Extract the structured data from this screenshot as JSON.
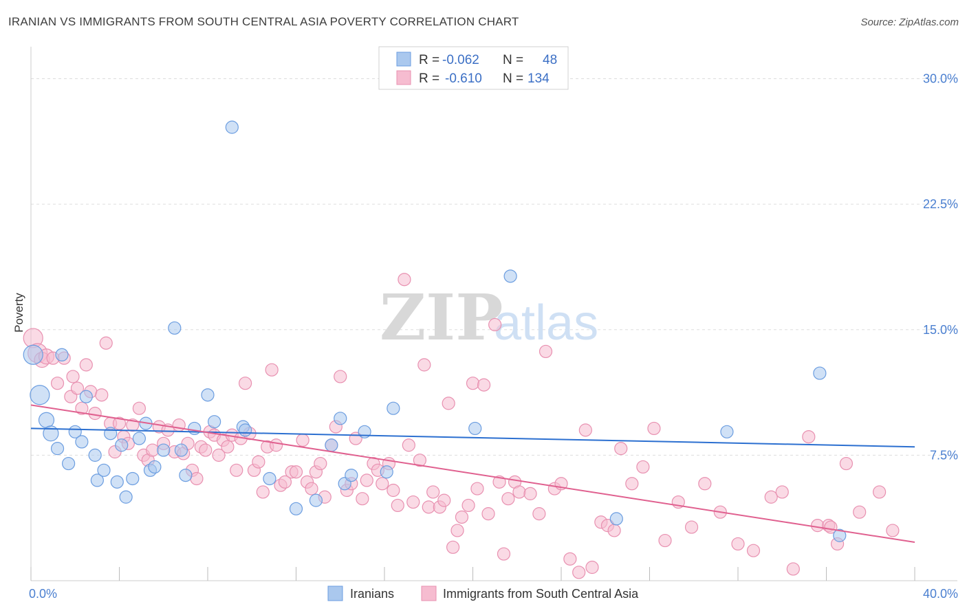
{
  "title": "IRANIAN VS IMMIGRANTS FROM SOUTH CENTRAL ASIA POVERTY CORRELATION CHART",
  "source": "Source: ZipAtlas.com",
  "watermark": {
    "zip": "ZIP",
    "atlas": "atlas"
  },
  "colors": {
    "blue_fill": "#aac8ee",
    "blue_stroke": "#6b9de0",
    "blue_line": "#2b6fd0",
    "pink_fill": "#f6bcd0",
    "pink_stroke": "#e890b0",
    "pink_line": "#e0608f",
    "grid": "#dddddd",
    "axis_text": "#4a7fd0"
  },
  "legend": {
    "rows": [
      {
        "r_label": "R =",
        "r_value": "-0.062",
        "n_label": "N =",
        "n_value": "48"
      },
      {
        "r_label": "R =",
        "r_value": "-0.610",
        "n_label": "N =",
        "n_value": "134"
      }
    ]
  },
  "bottom_legend": [
    "Iranians",
    "Immigrants from South Central Asia"
  ],
  "chart_data": {
    "type": "scatter",
    "ylabel": "Poverty",
    "xlim": [
      0,
      40
    ],
    "ylim": [
      0,
      31.5
    ],
    "x_tick_labels": [
      "0.0%",
      "40.0%"
    ],
    "y_ticks": [
      7.5,
      15.0,
      22.5,
      30.0
    ],
    "y_tick_labels": [
      "7.5%",
      "15.0%",
      "22.5%",
      "30.0%"
    ],
    "grid": true,
    "series": [
      {
        "name": "Iranians",
        "trend": {
          "x": [
            0,
            40
          ],
          "y": [
            9.1,
            8.0
          ]
        },
        "points": [
          [
            0.1,
            13.5
          ],
          [
            0.4,
            11.1
          ],
          [
            0.7,
            9.6
          ],
          [
            0.9,
            8.8
          ],
          [
            1.2,
            7.9
          ],
          [
            1.4,
            13.5
          ],
          [
            1.7,
            7.0
          ],
          [
            2.0,
            8.9
          ],
          [
            2.3,
            8.3
          ],
          [
            2.5,
            11.0
          ],
          [
            2.9,
            7.5
          ],
          [
            3.0,
            6.0
          ],
          [
            3.3,
            6.6
          ],
          [
            3.6,
            8.8
          ],
          [
            3.9,
            5.9
          ],
          [
            4.1,
            8.1
          ],
          [
            4.3,
            5.0
          ],
          [
            4.6,
            6.1
          ],
          [
            4.9,
            8.5
          ],
          [
            5.2,
            9.4
          ],
          [
            5.4,
            6.6
          ],
          [
            5.6,
            6.8
          ],
          [
            6.0,
            7.8
          ],
          [
            6.5,
            15.1
          ],
          [
            6.8,
            7.8
          ],
          [
            7.0,
            6.3
          ],
          [
            7.4,
            9.1
          ],
          [
            8.0,
            11.1
          ],
          [
            8.3,
            9.5
          ],
          [
            9.1,
            27.1
          ],
          [
            9.6,
            9.2
          ],
          [
            9.7,
            9.0
          ],
          [
            10.8,
            6.1
          ],
          [
            12.0,
            4.3
          ],
          [
            12.9,
            4.8
          ],
          [
            13.6,
            8.1
          ],
          [
            14.0,
            9.7
          ],
          [
            14.2,
            5.8
          ],
          [
            14.5,
            6.3
          ],
          [
            15.1,
            8.9
          ],
          [
            16.1,
            6.5
          ],
          [
            16.4,
            10.3
          ],
          [
            20.1,
            9.1
          ],
          [
            21.7,
            18.2
          ],
          [
            26.5,
            3.7
          ],
          [
            31.5,
            8.9
          ],
          [
            35.7,
            12.4
          ],
          [
            36.6,
            2.7
          ]
        ]
      },
      {
        "name": "Immigrants from South Central Asia",
        "trend": {
          "x": [
            0,
            40
          ],
          "y": [
            10.5,
            2.3
          ]
        },
        "points": [
          [
            0.1,
            14.5
          ],
          [
            0.3,
            13.6
          ],
          [
            0.5,
            13.2
          ],
          [
            0.7,
            13.4
          ],
          [
            1.0,
            13.3
          ],
          [
            1.2,
            11.8
          ],
          [
            1.5,
            13.3
          ],
          [
            1.8,
            11.0
          ],
          [
            1.9,
            12.2
          ],
          [
            2.1,
            11.5
          ],
          [
            2.3,
            10.3
          ],
          [
            2.5,
            12.9
          ],
          [
            2.7,
            11.3
          ],
          [
            2.9,
            10.0
          ],
          [
            3.2,
            11.1
          ],
          [
            3.4,
            14.2
          ],
          [
            3.6,
            9.4
          ],
          [
            3.8,
            7.7
          ],
          [
            4.0,
            9.4
          ],
          [
            4.2,
            8.6
          ],
          [
            4.4,
            8.2
          ],
          [
            4.6,
            9.3
          ],
          [
            4.9,
            10.3
          ],
          [
            5.1,
            7.5
          ],
          [
            5.3,
            7.2
          ],
          [
            5.5,
            7.8
          ],
          [
            5.8,
            9.2
          ],
          [
            6.0,
            8.2
          ],
          [
            6.2,
            9.0
          ],
          [
            6.5,
            7.7
          ],
          [
            6.7,
            9.3
          ],
          [
            6.9,
            7.6
          ],
          [
            7.1,
            8.2
          ],
          [
            7.3,
            6.6
          ],
          [
            7.5,
            6.1
          ],
          [
            7.7,
            8.0
          ],
          [
            7.9,
            7.8
          ],
          [
            8.1,
            8.9
          ],
          [
            8.3,
            8.7
          ],
          [
            8.5,
            7.5
          ],
          [
            8.7,
            8.4
          ],
          [
            8.9,
            8.0
          ],
          [
            9.1,
            8.7
          ],
          [
            9.3,
            6.6
          ],
          [
            9.5,
            8.5
          ],
          [
            9.7,
            11.8
          ],
          [
            9.9,
            8.8
          ],
          [
            10.1,
            6.6
          ],
          [
            10.3,
            7.1
          ],
          [
            10.5,
            5.3
          ],
          [
            10.7,
            8.0
          ],
          [
            10.9,
            12.6
          ],
          [
            11.1,
            8.1
          ],
          [
            11.3,
            5.7
          ],
          [
            11.5,
            5.9
          ],
          [
            11.8,
            6.5
          ],
          [
            12.0,
            6.5
          ],
          [
            12.3,
            8.4
          ],
          [
            12.5,
            5.9
          ],
          [
            12.7,
            5.5
          ],
          [
            12.9,
            6.5
          ],
          [
            13.1,
            7.0
          ],
          [
            13.3,
            5.0
          ],
          [
            13.6,
            8.1
          ],
          [
            13.8,
            9.2
          ],
          [
            14.0,
            12.2
          ],
          [
            14.3,
            5.4
          ],
          [
            14.5,
            5.8
          ],
          [
            14.7,
            8.5
          ],
          [
            15.0,
            4.9
          ],
          [
            15.2,
            6.0
          ],
          [
            15.5,
            7.0
          ],
          [
            15.7,
            6.6
          ],
          [
            15.9,
            5.8
          ],
          [
            16.2,
            7.0
          ],
          [
            16.4,
            5.4
          ],
          [
            16.6,
            4.5
          ],
          [
            16.9,
            18.0
          ],
          [
            17.1,
            8.1
          ],
          [
            17.3,
            4.7
          ],
          [
            17.6,
            7.2
          ],
          [
            17.8,
            12.9
          ],
          [
            18.0,
            4.4
          ],
          [
            18.2,
            5.3
          ],
          [
            18.5,
            4.4
          ],
          [
            18.7,
            4.8
          ],
          [
            18.9,
            10.6
          ],
          [
            19.1,
            2.0
          ],
          [
            19.3,
            3.0
          ],
          [
            19.5,
            3.8
          ],
          [
            19.8,
            4.5
          ],
          [
            20.0,
            11.8
          ],
          [
            20.2,
            5.5
          ],
          [
            20.5,
            11.7
          ],
          [
            20.7,
            4.0
          ],
          [
            21.0,
            15.3
          ],
          [
            21.2,
            5.9
          ],
          [
            21.4,
            1.6
          ],
          [
            21.6,
            4.9
          ],
          [
            21.9,
            5.9
          ],
          [
            22.1,
            5.3
          ],
          [
            22.6,
            5.2
          ],
          [
            23.0,
            4.0
          ],
          [
            23.3,
            13.7
          ],
          [
            23.7,
            5.5
          ],
          [
            24.0,
            5.8
          ],
          [
            24.4,
            1.3
          ],
          [
            24.8,
            0.5
          ],
          [
            25.1,
            9.0
          ],
          [
            25.4,
            0.8
          ],
          [
            25.8,
            3.5
          ],
          [
            26.1,
            3.3
          ],
          [
            26.4,
            3.0
          ],
          [
            26.7,
            7.9
          ],
          [
            27.2,
            5.8
          ],
          [
            27.7,
            6.8
          ],
          [
            28.2,
            9.1
          ],
          [
            28.7,
            2.4
          ],
          [
            29.3,
            4.7
          ],
          [
            29.9,
            3.2
          ],
          [
            30.5,
            5.8
          ],
          [
            31.2,
            4.1
          ],
          [
            32.0,
            2.2
          ],
          [
            32.7,
            1.8
          ],
          [
            33.5,
            5.0
          ],
          [
            34.0,
            5.3
          ],
          [
            34.5,
            0.7
          ],
          [
            35.2,
            8.6
          ],
          [
            35.6,
            3.3
          ],
          [
            36.1,
            3.3
          ],
          [
            36.5,
            2.2
          ],
          [
            36.9,
            7.0
          ],
          [
            37.5,
            4.1
          ],
          [
            38.4,
            5.3
          ],
          [
            39.0,
            3.0
          ],
          [
            36.2,
            3.2
          ]
        ]
      }
    ]
  }
}
